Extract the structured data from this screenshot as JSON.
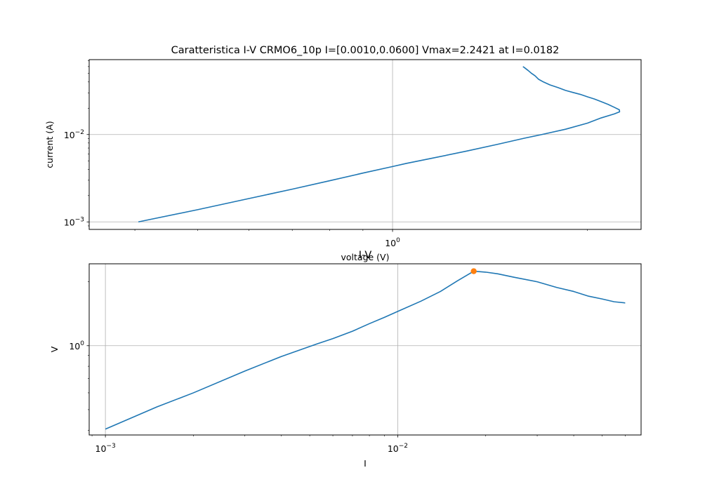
{
  "chart_data": [
    {
      "type": "line",
      "title": "Caratteristica I-V CRMO6_10p I=[0.0010,0.0600] Vmax=2.2421 at I=0.0182",
      "xlabel": "voltage (V)",
      "ylabel": "current (A)",
      "xscale": "log",
      "yscale": "log",
      "xlim": [
        0.34,
        2.42
      ],
      "ylim": [
        0.00082,
        0.072
      ],
      "grid": true,
      "x_ticks": [
        {
          "value": 1,
          "base": "10",
          "exp": "0"
        }
      ],
      "y_ticks": [
        {
          "value": 0.001,
          "base": "10",
          "exp": "−3"
        },
        {
          "value": 0.01,
          "base": "10",
          "exp": "−2"
        }
      ],
      "series": [
        {
          "color": "#1f77b4",
          "points": [
            [
              0.405,
              0.001
            ],
            [
              0.5,
              0.00138
            ],
            [
              0.6,
              0.00185
            ],
            [
              0.7,
              0.00237
            ],
            [
              0.8,
              0.00296
            ],
            [
              0.9,
              0.00362
            ],
            [
              1.0,
              0.0043
            ],
            [
              1.05,
              0.00467
            ],
            [
              1.15,
              0.00535
            ],
            [
              1.3,
              0.00645
            ],
            [
              1.45,
              0.0077
            ],
            [
              1.6,
              0.0091
            ],
            [
              1.7,
              0.01
            ],
            [
              1.85,
              0.0115
            ],
            [
              2.0,
              0.0135
            ],
            [
              2.1,
              0.0155
            ],
            [
              2.2,
              0.0172
            ],
            [
              2.2421,
              0.0182
            ],
            [
              2.24,
              0.0192
            ],
            [
              2.2,
              0.0205
            ],
            [
              2.15,
              0.0222
            ],
            [
              2.1,
              0.0238
            ],
            [
              2.05,
              0.0255
            ],
            [
              2.0,
              0.027
            ],
            [
              1.95,
              0.0288
            ],
            [
              1.9,
              0.0303
            ],
            [
              1.85,
              0.032
            ],
            [
              1.8,
              0.0345
            ],
            [
              1.75,
              0.037
            ],
            [
              1.71,
              0.04
            ],
            [
              1.68,
              0.043
            ],
            [
              1.66,
              0.047
            ],
            [
              1.64,
              0.05
            ],
            [
              1.62,
              0.054
            ],
            [
              1.6,
              0.058
            ],
            [
              1.59,
              0.06
            ]
          ]
        }
      ]
    },
    {
      "type": "line",
      "title": "I-V",
      "xlabel": "I",
      "ylabel": "V",
      "xscale": "log",
      "yscale": "log",
      "xlim": [
        0.00088,
        0.068
      ],
      "ylim": [
        0.38,
        2.43
      ],
      "grid": true,
      "x_ticks": [
        {
          "value": 0.001,
          "base": "10",
          "exp": "−3"
        },
        {
          "value": 0.01,
          "base": "10",
          "exp": "−2"
        }
      ],
      "y_ticks": [
        {
          "value": 1,
          "base": "10",
          "exp": "0"
        }
      ],
      "series": [
        {
          "color": "#1f77b4",
          "points": [
            [
              0.001,
              0.405
            ],
            [
              0.0015,
              0.515
            ],
            [
              0.002,
              0.6
            ],
            [
              0.003,
              0.76
            ],
            [
              0.004,
              0.89
            ],
            [
              0.0053,
              1.02
            ],
            [
              0.006,
              1.08
            ],
            [
              0.007,
              1.17
            ],
            [
              0.008,
              1.27
            ],
            [
              0.009,
              1.36
            ],
            [
              0.01,
              1.45
            ],
            [
              0.012,
              1.62
            ],
            [
              0.014,
              1.8
            ],
            [
              0.016,
              2.02
            ],
            [
              0.0182,
              2.2421
            ],
            [
              0.02,
              2.22
            ],
            [
              0.022,
              2.18
            ],
            [
              0.025,
              2.1
            ],
            [
              0.03,
              2.0
            ],
            [
              0.035,
              1.88
            ],
            [
              0.04,
              1.8
            ],
            [
              0.045,
              1.71
            ],
            [
              0.05,
              1.66
            ],
            [
              0.055,
              1.61
            ],
            [
              0.06,
              1.59
            ]
          ]
        },
        {
          "color": "#ff7f0e",
          "marker": "o",
          "points": [
            [
              0.0182,
              2.2421
            ]
          ]
        }
      ]
    }
  ]
}
